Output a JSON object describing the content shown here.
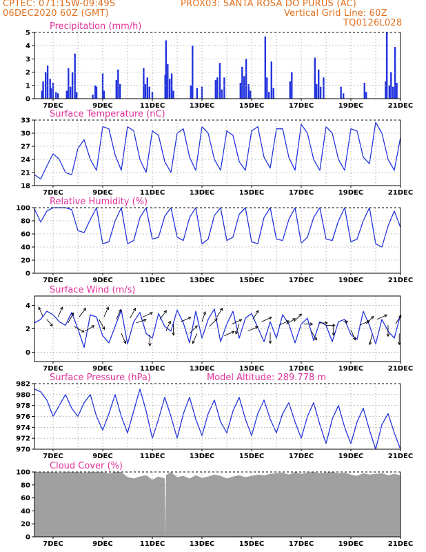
{
  "header": {
    "line1_left": "CPTEC:   071:15W-09:49S",
    "line1_right": "PROX03: SANTA ROSA DO PURUS (AC)",
    "line2_left": "06DEC2020 60Z (GMT)",
    "line2_right": "Vertical Grid Line: 60Z",
    "line3_right": "TQ0126L028"
  },
  "colors": {
    "header": "#e0701e",
    "title": "#e0309a",
    "series": "#2233dd",
    "cloud": "#a0a0a0"
  },
  "x_axis": {
    "labels": [
      "7DEC",
      "9DEC",
      "11DEC",
      "13DEC",
      "15DEC",
      "17DEC",
      "19DEC",
      "21DEC"
    ],
    "label_days": [
      7,
      9,
      11,
      13,
      15,
      17,
      19,
      21
    ],
    "grid_days": [
      7,
      8,
      9,
      10,
      11,
      12,
      13,
      14,
      15,
      16,
      17,
      18,
      19,
      20,
      21
    ],
    "start_day": 6.25,
    "end_day": 21.0
  },
  "chart_data": [
    {
      "type": "bar",
      "title": "Precipitation (mm/h)",
      "ylim": [
        0,
        5
      ],
      "yticks": [
        0,
        1,
        2,
        3,
        4,
        5
      ],
      "series": [
        {
          "x": [
            6.55,
            6.6,
            6.7,
            6.78,
            6.88,
            6.92,
            7.0,
            7.12,
            7.2,
            7.55,
            7.62,
            7.7,
            7.78,
            7.88,
            7.95,
            8.6,
            8.7,
            8.75,
            9.0,
            9.05,
            9.55,
            9.62,
            9.7,
            10.65,
            10.72,
            10.8,
            10.88,
            11.0,
            11.52,
            11.55,
            11.62,
            11.7,
            11.78,
            11.85,
            12.55,
            12.62,
            12.8,
            13.0,
            13.55,
            13.62,
            13.72,
            13.8,
            13.9,
            14.55,
            14.62,
            14.7,
            14.78,
            14.88,
            14.95,
            15.55,
            15.62,
            15.7,
            15.8,
            15.88,
            16.55,
            16.62,
            17.55,
            17.62,
            17.7,
            17.78,
            17.9,
            18.6,
            18.7,
            19.55,
            19.62,
            20.4,
            20.45,
            20.55,
            20.62,
            20.7,
            20.78,
            20.85
          ],
          "values": [
            0.6,
            1.3,
            2.0,
            2.5,
            1.5,
            0.8,
            1.2,
            0.5,
            0.4,
            0.6,
            2.3,
            0.9,
            2.0,
            3.4,
            0.5,
            0.3,
            1.0,
            0.9,
            1.9,
            0.6,
            1.4,
            2.2,
            1.1,
            2.3,
            1.1,
            1.6,
            0.9,
            0.5,
            1.8,
            4.4,
            2.6,
            1.5,
            1.9,
            0.6,
            1.0,
            4.0,
            0.8,
            0.9,
            1.4,
            1.6,
            2.7,
            0.7,
            1.6,
            1.2,
            2.4,
            1.7,
            3.0,
            1.1,
            0.6,
            4.7,
            1.6,
            0.5,
            2.8,
            0.8,
            1.3,
            2.0,
            3.1,
            1.1,
            2.2,
            0.9,
            1.6,
            0.9,
            0.4,
            1.2,
            0.5,
            1.3,
            5.0,
            1.0,
            2.0,
            0.9,
            3.9,
            1.2
          ]
        }
      ]
    },
    {
      "type": "line",
      "title": "Surface Temperature (nC)",
      "ylim": [
        18,
        33
      ],
      "yticks": [
        18,
        21,
        24,
        27,
        30,
        33
      ],
      "series": [
        {
          "x": [
            6.25,
            6.5,
            6.75,
            7.0,
            7.25,
            7.5,
            7.75,
            8.0,
            8.25,
            8.5,
            8.75,
            9.0,
            9.25,
            9.5,
            9.75,
            10.0,
            10.25,
            10.5,
            10.75,
            11.0,
            11.25,
            11.5,
            11.75,
            12.0,
            12.25,
            12.5,
            12.75,
            13.0,
            13.25,
            13.5,
            13.75,
            14.0,
            14.25,
            14.5,
            14.75,
            15.0,
            15.25,
            15.5,
            15.75,
            16.0,
            16.25,
            16.5,
            16.75,
            17.0,
            17.25,
            17.5,
            17.75,
            18.0,
            18.25,
            18.5,
            18.75,
            19.0,
            19.25,
            19.5,
            19.75,
            20.0,
            20.25,
            20.5,
            20.75,
            21.0
          ],
          "values": [
            20.5,
            19.5,
            22.5,
            25.3,
            24.0,
            21.0,
            20.5,
            26.5,
            28.5,
            24.0,
            21.5,
            31.5,
            31.0,
            25.0,
            21.5,
            31.5,
            30.5,
            24.0,
            21.0,
            30.5,
            29.5,
            23.5,
            21.0,
            30.0,
            31.0,
            24.5,
            21.5,
            31.5,
            30.0,
            24.0,
            21.5,
            30.5,
            29.5,
            23.5,
            21.5,
            30.5,
            31.5,
            24.5,
            22.0,
            31.0,
            31.0,
            24.5,
            21.5,
            32.0,
            30.0,
            24.0,
            21.5,
            31.5,
            30.0,
            24.0,
            21.5,
            31.0,
            30.5,
            24.5,
            23.0,
            32.5,
            30.0,
            24.0,
            21.5,
            29.0
          ]
        }
      ]
    },
    {
      "type": "line",
      "title": "Relative Humidity (%)",
      "ylim": [
        0,
        100
      ],
      "yticks": [
        0,
        20,
        40,
        60,
        80,
        100
      ],
      "series": [
        {
          "x": [
            6.25,
            6.5,
            6.75,
            7.0,
            7.25,
            7.5,
            7.75,
            8.0,
            8.25,
            8.5,
            8.75,
            9.0,
            9.25,
            9.5,
            9.75,
            10.0,
            10.25,
            10.5,
            10.75,
            11.0,
            11.25,
            11.5,
            11.75,
            12.0,
            12.25,
            12.5,
            12.75,
            13.0,
            13.25,
            13.5,
            13.75,
            14.0,
            14.25,
            14.5,
            14.75,
            15.0,
            15.25,
            15.5,
            15.75,
            16.0,
            16.25,
            16.5,
            16.75,
            17.0,
            17.25,
            17.5,
            17.75,
            18.0,
            18.25,
            18.5,
            18.75,
            19.0,
            19.25,
            19.5,
            19.75,
            20.0,
            20.25,
            20.5,
            20.75,
            21.0
          ],
          "values": [
            98,
            78,
            95,
            100,
            100,
            100,
            97,
            65,
            62,
            82,
            100,
            45,
            48,
            80,
            100,
            45,
            50,
            85,
            100,
            52,
            55,
            87,
            100,
            55,
            50,
            85,
            100,
            45,
            52,
            88,
            100,
            50,
            55,
            90,
            100,
            48,
            45,
            85,
            100,
            52,
            50,
            82,
            100,
            46,
            55,
            85,
            100,
            52,
            50,
            80,
            100,
            48,
            52,
            80,
            100,
            45,
            40,
            72,
            95,
            70
          ]
        }
      ]
    },
    {
      "type": "line",
      "title": "Surface Wind (m/s)",
      "ylim": [
        -0.8,
        4.8
      ],
      "yticks": [
        0,
        2,
        4
      ],
      "series": [
        {
          "x": [
            6.25,
            6.5,
            6.75,
            7.0,
            7.25,
            7.5,
            7.75,
            8.0,
            8.25,
            8.5,
            8.75,
            9.0,
            9.25,
            9.5,
            9.75,
            10.0,
            10.25,
            10.5,
            10.75,
            11.0,
            11.25,
            11.5,
            11.75,
            12.0,
            12.25,
            12.5,
            12.75,
            13.0,
            13.25,
            13.5,
            13.75,
            14.0,
            14.25,
            14.5,
            14.75,
            15.0,
            15.25,
            15.5,
            15.75,
            16.0,
            16.25,
            16.5,
            16.75,
            17.0,
            17.25,
            17.5,
            17.75,
            18.0,
            18.25,
            18.5,
            18.75,
            19.0,
            19.25,
            19.5,
            19.75,
            20.0,
            20.25,
            20.5,
            20.75,
            21.0
          ],
          "values": [
            2.5,
            2.8,
            3.5,
            3.2,
            2.6,
            2.3,
            3.4,
            2.0,
            0.4,
            3.2,
            3.0,
            1.4,
            0.8,
            2.2,
            3.6,
            0.7,
            2.6,
            3.4,
            1.6,
            1.2,
            3.3,
            2.2,
            1.8,
            3.6,
            2.5,
            0.8,
            3.5,
            1.2,
            2.8,
            3.7,
            0.9,
            2.4,
            3.5,
            1.2,
            2.9,
            3.3,
            2.1,
            0.9,
            2.6,
            1.2,
            3.2,
            2.4,
            0.8,
            2.4,
            2.9,
            1.0,
            2.6,
            2.3,
            0.9,
            2.6,
            2.8,
            1.5,
            1.1,
            3.5,
            2.3,
            0.7,
            2.8,
            1.8,
            1.2,
            3.2
          ]
        }
      ]
    },
    {
      "type": "line",
      "title": "Surface Pressure (hPa)",
      "annotation": "Model Altitude: 289.778 m",
      "ylim": [
        970,
        982
      ],
      "yticks": [
        970,
        972,
        974,
        976,
        978,
        980,
        982
      ],
      "series": [
        {
          "x": [
            6.25,
            6.5,
            6.75,
            7.0,
            7.25,
            7.5,
            7.75,
            8.0,
            8.25,
            8.5,
            8.75,
            9.0,
            9.25,
            9.5,
            9.75,
            10.0,
            10.25,
            10.5,
            10.75,
            11.0,
            11.25,
            11.5,
            11.75,
            12.0,
            12.25,
            12.5,
            12.75,
            13.0,
            13.25,
            13.5,
            13.75,
            14.0,
            14.25,
            14.5,
            14.75,
            15.0,
            15.25,
            15.5,
            15.75,
            16.0,
            16.25,
            16.5,
            16.75,
            17.0,
            17.25,
            17.5,
            17.75,
            18.0,
            18.25,
            18.5,
            18.75,
            19.0,
            19.25,
            19.5,
            19.75,
            20.0,
            20.25,
            20.5,
            20.75,
            21.0
          ],
          "values": [
            981.0,
            980.5,
            979.0,
            976.0,
            978.0,
            980.0,
            977.5,
            976.0,
            978.5,
            980.0,
            976.0,
            973.5,
            976.5,
            980.0,
            976.0,
            973.0,
            977.0,
            981.0,
            977.0,
            972.0,
            975.5,
            979.5,
            976.0,
            972.0,
            976.5,
            979.5,
            975.5,
            972.5,
            976.5,
            979.0,
            975.0,
            973.0,
            977.0,
            979.5,
            975.5,
            972.5,
            976.5,
            979.0,
            975.5,
            973.0,
            976.5,
            978.5,
            975.0,
            972.0,
            976.0,
            978.5,
            974.5,
            971.0,
            975.5,
            978.0,
            974.0,
            971.0,
            975.0,
            977.5,
            973.5,
            970.0,
            974.5,
            976.5,
            973.0,
            970.0
          ]
        }
      ]
    },
    {
      "type": "area",
      "title": "Cloud Cover (%)",
      "ylim": [
        0,
        100
      ],
      "yticks": [
        0,
        20,
        40,
        60,
        80,
        100
      ],
      "series": [
        {
          "x": [
            6.25,
            6.5,
            6.75,
            7.0,
            7.25,
            7.5,
            7.75,
            8.0,
            8.25,
            8.5,
            8.75,
            9.0,
            9.25,
            9.5,
            9.75,
            10.0,
            10.25,
            10.5,
            10.75,
            11.0,
            11.25,
            11.5,
            11.52,
            11.55,
            11.75,
            12.0,
            12.25,
            12.5,
            12.75,
            13.0,
            13.25,
            13.5,
            13.75,
            14.0,
            14.25,
            14.5,
            14.75,
            15.0,
            15.25,
            15.5,
            15.75,
            16.0,
            16.25,
            16.5,
            16.75,
            17.0,
            17.25,
            17.5,
            17.75,
            18.0,
            18.25,
            18.5,
            18.75,
            19.0,
            19.25,
            19.5,
            19.75,
            20.0,
            20.25,
            20.5,
            20.75,
            21.0
          ],
          "values": [
            100,
            100,
            100,
            100,
            99,
            100,
            100,
            100,
            99,
            100,
            100,
            100,
            98,
            100,
            100,
            92,
            90,
            93,
            95,
            88,
            93,
            90,
            0,
            95,
            100,
            92,
            94,
            90,
            95,
            91,
            93,
            96,
            94,
            90,
            93,
            95,
            92,
            94,
            96,
            95,
            97,
            98,
            99,
            96,
            100,
            97,
            99,
            100,
            98,
            99,
            100,
            98,
            99,
            96,
            94,
            98,
            96,
            97,
            98,
            95,
            97,
            95
          ]
        }
      ]
    }
  ],
  "wind_arrows": {
    "x": [
      6.6,
      6.75,
      7.2,
      7.6,
      7.85,
      8.05,
      8.3,
      8.85,
      9.05,
      9.55,
      9.75,
      10.1,
      10.35,
      10.6,
      10.9,
      11.3,
      11.55,
      11.85,
      12.15,
      12.5,
      12.8,
      13.0,
      13.3,
      13.6,
      13.9,
      14.2,
      14.5,
      14.85,
      15.05,
      15.4,
      15.75,
      16.1,
      16.4,
      16.7,
      17.1,
      17.4,
      17.7,
      18.0,
      18.3,
      18.7,
      19.0,
      19.35,
      19.6,
      19.85,
      20.05,
      20.5,
      20.8,
      20.95
    ],
    "y": [
      3.0,
      2.8,
      3.0,
      2.5,
      2.2,
      3.0,
      1.8,
      2.8,
      3.0,
      2.8,
      1.6,
      2.9,
      2.5,
      3.0,
      1.5,
      2.8,
      1.8,
      2.4,
      2.6,
      1.6,
      1.6,
      2.6,
      2.2,
      3.0,
      1.4,
      2.4,
      2.4,
      1.8,
      2.8,
      2.6,
      1.7,
      2.3,
      2.4,
      2.6,
      2.4,
      1.8,
      2.5,
      2.3,
      2.4,
      2.6,
      1.9,
      2.3,
      2.4,
      1.5,
      2.8,
      2.3,
      2.4,
      1.6
    ],
    "u": [
      -0.4,
      0.5,
      0.4,
      0.5,
      0.9,
      0.6,
      0.8,
      0.5,
      0.4,
      0.4,
      0.4,
      0.5,
      0.9,
      0.9,
      0.0,
      0.6,
      0.4,
      0.0,
      0.9,
      0.7,
      -0.4,
      0.3,
      0.7,
      0.5,
      0.9,
      0.9,
      -0.3,
      0.9,
      0.5,
      0.9,
      0.0,
      0.9,
      0.8,
      0.7,
      0.8,
      0.5,
      0.8,
      0.8,
      0.0,
      0.4,
      0.4,
      0.9,
      0.7,
      -0.2,
      0.9,
      0.0,
      0.5,
      0.0
    ],
    "v": [
      0.9,
      -0.6,
      0.9,
      0.9,
      -0.5,
      0.8,
      0.5,
      -0.9,
      0.9,
      0.9,
      -0.9,
      0.9,
      0.3,
      0.4,
      -1.0,
      0.8,
      0.9,
      -1.0,
      0.4,
      0.7,
      -0.9,
      0.9,
      0.7,
      0.8,
      0.4,
      0.4,
      -0.9,
      0.4,
      0.8,
      0.4,
      -1.0,
      0.4,
      0.5,
      0.7,
      0.0,
      -0.8,
      0.0,
      0.0,
      -1.0,
      0.0,
      -0.9,
      0.4,
      0.7,
      -0.9,
      0.4,
      -1.0,
      0.8,
      -1.0
    ]
  }
}
